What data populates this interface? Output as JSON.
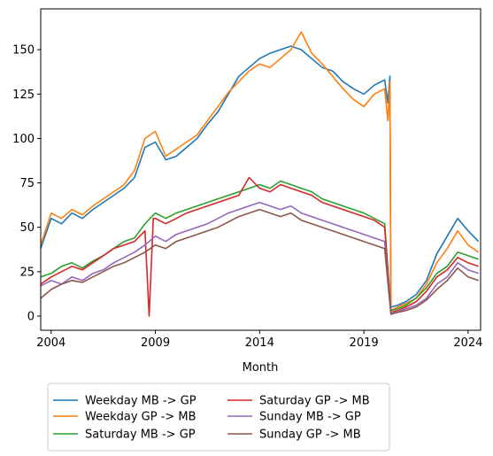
{
  "chart_data": {
    "type": "line",
    "xlabel": "Month",
    "ylabel": "",
    "xlim": [
      2003.5,
      2024.6
    ],
    "ylim": [
      -8,
      173
    ],
    "x_ticks": [
      2004,
      2009,
      2014,
      2019,
      2024
    ],
    "y_ticks": [
      0,
      25,
      50,
      75,
      100,
      125,
      150
    ],
    "grid": false,
    "legend": "below-left, two columns",
    "series": [
      {
        "name": "Weekday MB -> GP",
        "color": "#1f77b4",
        "points": [
          [
            2003.5,
            38
          ],
          [
            2004,
            55
          ],
          [
            2004.5,
            52
          ],
          [
            2005,
            58
          ],
          [
            2005.5,
            55
          ],
          [
            2006,
            60
          ],
          [
            2006.5,
            64
          ],
          [
            2007,
            68
          ],
          [
            2007.5,
            72
          ],
          [
            2008,
            78
          ],
          [
            2008.5,
            95
          ],
          [
            2009,
            98
          ],
          [
            2009.5,
            88
          ],
          [
            2010,
            90
          ],
          [
            2010.5,
            95
          ],
          [
            2011,
            100
          ],
          [
            2011.5,
            108
          ],
          [
            2012,
            115
          ],
          [
            2012.5,
            125
          ],
          [
            2013,
            135
          ],
          [
            2013.5,
            140
          ],
          [
            2014,
            145
          ],
          [
            2014.5,
            148
          ],
          [
            2015,
            150
          ],
          [
            2015.5,
            152
          ],
          [
            2016,
            150
          ],
          [
            2016.5,
            145
          ],
          [
            2017,
            140
          ],
          [
            2017.5,
            138
          ],
          [
            2018,
            132
          ],
          [
            2018.5,
            128
          ],
          [
            2019,
            125
          ],
          [
            2019.5,
            130
          ],
          [
            2020,
            133
          ],
          [
            2020.15,
            120
          ],
          [
            2020.25,
            135
          ],
          [
            2020.3,
            5
          ],
          [
            2020.6,
            6
          ],
          [
            2021,
            8
          ],
          [
            2021.5,
            12
          ],
          [
            2022,
            20
          ],
          [
            2022.5,
            35
          ],
          [
            2023,
            45
          ],
          [
            2023.5,
            55
          ],
          [
            2024,
            48
          ],
          [
            2024.5,
            42
          ]
        ]
      },
      {
        "name": "Weekday GP -> MB",
        "color": "#ff7f0e",
        "points": [
          [
            2003.5,
            40
          ],
          [
            2004,
            58
          ],
          [
            2004.5,
            55
          ],
          [
            2005,
            60
          ],
          [
            2005.5,
            57
          ],
          [
            2006,
            62
          ],
          [
            2006.5,
            66
          ],
          [
            2007,
            70
          ],
          [
            2007.5,
            74
          ],
          [
            2008,
            82
          ],
          [
            2008.5,
            100
          ],
          [
            2009,
            104
          ],
          [
            2009.5,
            90
          ],
          [
            2010,
            94
          ],
          [
            2010.5,
            98
          ],
          [
            2011,
            102
          ],
          [
            2011.5,
            110
          ],
          [
            2012,
            118
          ],
          [
            2012.5,
            126
          ],
          [
            2013,
            132
          ],
          [
            2013.5,
            138
          ],
          [
            2014,
            142
          ],
          [
            2014.5,
            140
          ],
          [
            2015,
            145
          ],
          [
            2015.5,
            150
          ],
          [
            2016,
            160
          ],
          [
            2016.5,
            148
          ],
          [
            2017,
            142
          ],
          [
            2017.5,
            135
          ],
          [
            2018,
            128
          ],
          [
            2018.5,
            122
          ],
          [
            2019,
            118
          ],
          [
            2019.5,
            125
          ],
          [
            2020,
            128
          ],
          [
            2020.15,
            110
          ],
          [
            2020.25,
            132
          ],
          [
            2020.3,
            3
          ],
          [
            2020.6,
            5
          ],
          [
            2021,
            7
          ],
          [
            2021.5,
            10
          ],
          [
            2022,
            18
          ],
          [
            2022.5,
            30
          ],
          [
            2023,
            38
          ],
          [
            2023.5,
            48
          ],
          [
            2024,
            40
          ],
          [
            2024.5,
            36
          ]
        ]
      },
      {
        "name": "Saturday MB -> GP",
        "color": "#2ca02c",
        "points": [
          [
            2003.5,
            22
          ],
          [
            2004,
            24
          ],
          [
            2004.5,
            28
          ],
          [
            2005,
            30
          ],
          [
            2005.5,
            27
          ],
          [
            2006,
            31
          ],
          [
            2006.5,
            34
          ],
          [
            2007,
            38
          ],
          [
            2007.5,
            42
          ],
          [
            2008,
            44
          ],
          [
            2008.5,
            52
          ],
          [
            2009,
            58
          ],
          [
            2009.5,
            55
          ],
          [
            2010,
            58
          ],
          [
            2010.5,
            60
          ],
          [
            2011,
            62
          ],
          [
            2011.5,
            64
          ],
          [
            2012,
            66
          ],
          [
            2012.5,
            68
          ],
          [
            2013,
            70
          ],
          [
            2013.5,
            72
          ],
          [
            2014,
            74
          ],
          [
            2014.5,
            72
          ],
          [
            2015,
            76
          ],
          [
            2015.5,
            74
          ],
          [
            2016,
            72
          ],
          [
            2016.5,
            70
          ],
          [
            2017,
            66
          ],
          [
            2017.5,
            64
          ],
          [
            2018,
            62
          ],
          [
            2018.5,
            60
          ],
          [
            2019,
            58
          ],
          [
            2019.5,
            55
          ],
          [
            2020,
            52
          ],
          [
            2020.3,
            3
          ],
          [
            2020.6,
            4
          ],
          [
            2021,
            6
          ],
          [
            2021.5,
            10
          ],
          [
            2022,
            16
          ],
          [
            2022.5,
            24
          ],
          [
            2023,
            28
          ],
          [
            2023.5,
            36
          ],
          [
            2024,
            34
          ],
          [
            2024.5,
            32
          ]
        ]
      },
      {
        "name": "Saturday GP -> MB",
        "color": "#d62728",
        "points": [
          [
            2003.5,
            18
          ],
          [
            2004,
            22
          ],
          [
            2004.5,
            25
          ],
          [
            2005,
            28
          ],
          [
            2005.5,
            26
          ],
          [
            2006,
            30
          ],
          [
            2006.5,
            34
          ],
          [
            2007,
            38
          ],
          [
            2007.5,
            40
          ],
          [
            2008,
            42
          ],
          [
            2008.5,
            48
          ],
          [
            2008.7,
            0
          ],
          [
            2008.9,
            55
          ],
          [
            2009,
            55
          ],
          [
            2009.5,
            52
          ],
          [
            2010,
            55
          ],
          [
            2010.5,
            58
          ],
          [
            2011,
            60
          ],
          [
            2011.5,
            62
          ],
          [
            2012,
            64
          ],
          [
            2012.5,
            66
          ],
          [
            2013,
            68
          ],
          [
            2013.5,
            78
          ],
          [
            2014,
            72
          ],
          [
            2014.5,
            70
          ],
          [
            2015,
            74
          ],
          [
            2015.5,
            72
          ],
          [
            2016,
            70
          ],
          [
            2016.5,
            68
          ],
          [
            2017,
            64
          ],
          [
            2017.5,
            62
          ],
          [
            2018,
            60
          ],
          [
            2018.5,
            58
          ],
          [
            2019,
            56
          ],
          [
            2019.5,
            54
          ],
          [
            2020,
            50
          ],
          [
            2020.3,
            2
          ],
          [
            2020.6,
            3
          ],
          [
            2021,
            5
          ],
          [
            2021.5,
            8
          ],
          [
            2022,
            14
          ],
          [
            2022.5,
            22
          ],
          [
            2023,
            26
          ],
          [
            2023.5,
            33
          ],
          [
            2024,
            30
          ],
          [
            2024.5,
            28
          ]
        ]
      },
      {
        "name": "Sunday MB -> GP",
        "color": "#9467bd",
        "points": [
          [
            2003.5,
            17
          ],
          [
            2004,
            20
          ],
          [
            2004.5,
            18
          ],
          [
            2005,
            22
          ],
          [
            2005.5,
            20
          ],
          [
            2006,
            24
          ],
          [
            2006.5,
            26
          ],
          [
            2007,
            30
          ],
          [
            2007.5,
            33
          ],
          [
            2008,
            36
          ],
          [
            2008.5,
            40
          ],
          [
            2009,
            45
          ],
          [
            2009.5,
            42
          ],
          [
            2010,
            46
          ],
          [
            2010.5,
            48
          ],
          [
            2011,
            50
          ],
          [
            2011.5,
            52
          ],
          [
            2012,
            55
          ],
          [
            2012.5,
            58
          ],
          [
            2013,
            60
          ],
          [
            2013.5,
            62
          ],
          [
            2014,
            64
          ],
          [
            2014.5,
            62
          ],
          [
            2015,
            60
          ],
          [
            2015.5,
            62
          ],
          [
            2016,
            58
          ],
          [
            2016.5,
            56
          ],
          [
            2017,
            54
          ],
          [
            2017.5,
            52
          ],
          [
            2018,
            50
          ],
          [
            2018.5,
            48
          ],
          [
            2019,
            46
          ],
          [
            2019.5,
            44
          ],
          [
            2020,
            42
          ],
          [
            2020.3,
            2
          ],
          [
            2020.6,
            2
          ],
          [
            2021,
            4
          ],
          [
            2021.5,
            6
          ],
          [
            2022,
            10
          ],
          [
            2022.5,
            18
          ],
          [
            2023,
            22
          ],
          [
            2023.5,
            30
          ],
          [
            2024,
            26
          ],
          [
            2024.5,
            24
          ]
        ]
      },
      {
        "name": "Sunday GP -> MB",
        "color": "#8c564b",
        "points": [
          [
            2003.5,
            10
          ],
          [
            2004,
            15
          ],
          [
            2004.5,
            18
          ],
          [
            2005,
            20
          ],
          [
            2005.5,
            19
          ],
          [
            2006,
            22
          ],
          [
            2006.5,
            25
          ],
          [
            2007,
            28
          ],
          [
            2007.5,
            30
          ],
          [
            2008,
            33
          ],
          [
            2008.5,
            36
          ],
          [
            2009,
            40
          ],
          [
            2009.5,
            38
          ],
          [
            2010,
            42
          ],
          [
            2010.5,
            44
          ],
          [
            2011,
            46
          ],
          [
            2011.5,
            48
          ],
          [
            2012,
            50
          ],
          [
            2012.5,
            53
          ],
          [
            2013,
            56
          ],
          [
            2013.5,
            58
          ],
          [
            2014,
            60
          ],
          [
            2014.5,
            58
          ],
          [
            2015,
            56
          ],
          [
            2015.5,
            58
          ],
          [
            2016,
            54
          ],
          [
            2016.5,
            52
          ],
          [
            2017,
            50
          ],
          [
            2017.5,
            48
          ],
          [
            2018,
            46
          ],
          [
            2018.5,
            44
          ],
          [
            2019,
            42
          ],
          [
            2019.5,
            40
          ],
          [
            2020,
            38
          ],
          [
            2020.3,
            1
          ],
          [
            2020.6,
            2
          ],
          [
            2021,
            3
          ],
          [
            2021.5,
            5
          ],
          [
            2022,
            9
          ],
          [
            2022.5,
            15
          ],
          [
            2023,
            20
          ],
          [
            2023.5,
            27
          ],
          [
            2024,
            22
          ],
          [
            2024.5,
            20
          ]
        ]
      }
    ]
  }
}
